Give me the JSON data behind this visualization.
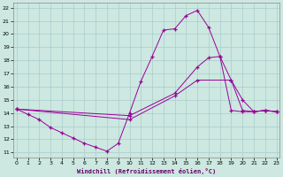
{
  "xlabel": "Windchill (Refroidissement éolien,°C)",
  "bg_color": "#cce8e0",
  "grid_color": "#aacccc",
  "line_color": "#990099",
  "x_ticks": [
    0,
    1,
    2,
    3,
    4,
    5,
    6,
    7,
    8,
    9,
    10,
    11,
    12,
    13,
    14,
    15,
    16,
    17,
    18,
    19,
    20,
    21,
    22,
    23
  ],
  "y_ticks": [
    11,
    12,
    13,
    14,
    15,
    16,
    17,
    18,
    19,
    20,
    21,
    22
  ],
  "xlim": [
    -0.3,
    23.3
  ],
  "ylim": [
    10.6,
    22.4
  ],
  "line1_x": [
    0,
    1,
    2,
    3,
    4,
    5,
    6,
    7,
    8,
    9,
    10,
    11,
    12,
    13,
    14,
    15,
    16,
    17,
    18,
    19,
    20,
    21,
    22,
    23
  ],
  "line1_y": [
    14.3,
    13.9,
    13.5,
    12.9,
    12.5,
    12.1,
    11.7,
    11.4,
    11.1,
    11.7,
    14.0,
    16.4,
    18.3,
    20.3,
    20.4,
    21.4,
    21.8,
    20.5,
    18.3,
    14.2,
    14.1,
    14.1,
    14.2,
    14.1
  ],
  "line2_x": [
    0,
    10,
    14,
    16,
    19,
    20,
    21,
    22,
    23
  ],
  "line2_y": [
    14.3,
    13.5,
    15.3,
    16.5,
    16.5,
    14.2,
    14.1,
    14.2,
    14.1
  ],
  "line3_x": [
    0,
    10,
    14,
    16,
    17,
    18,
    19,
    20,
    21,
    22,
    23
  ],
  "line3_y": [
    14.3,
    13.8,
    15.5,
    17.5,
    18.2,
    18.3,
    16.5,
    15.0,
    14.1,
    14.2,
    14.1
  ]
}
